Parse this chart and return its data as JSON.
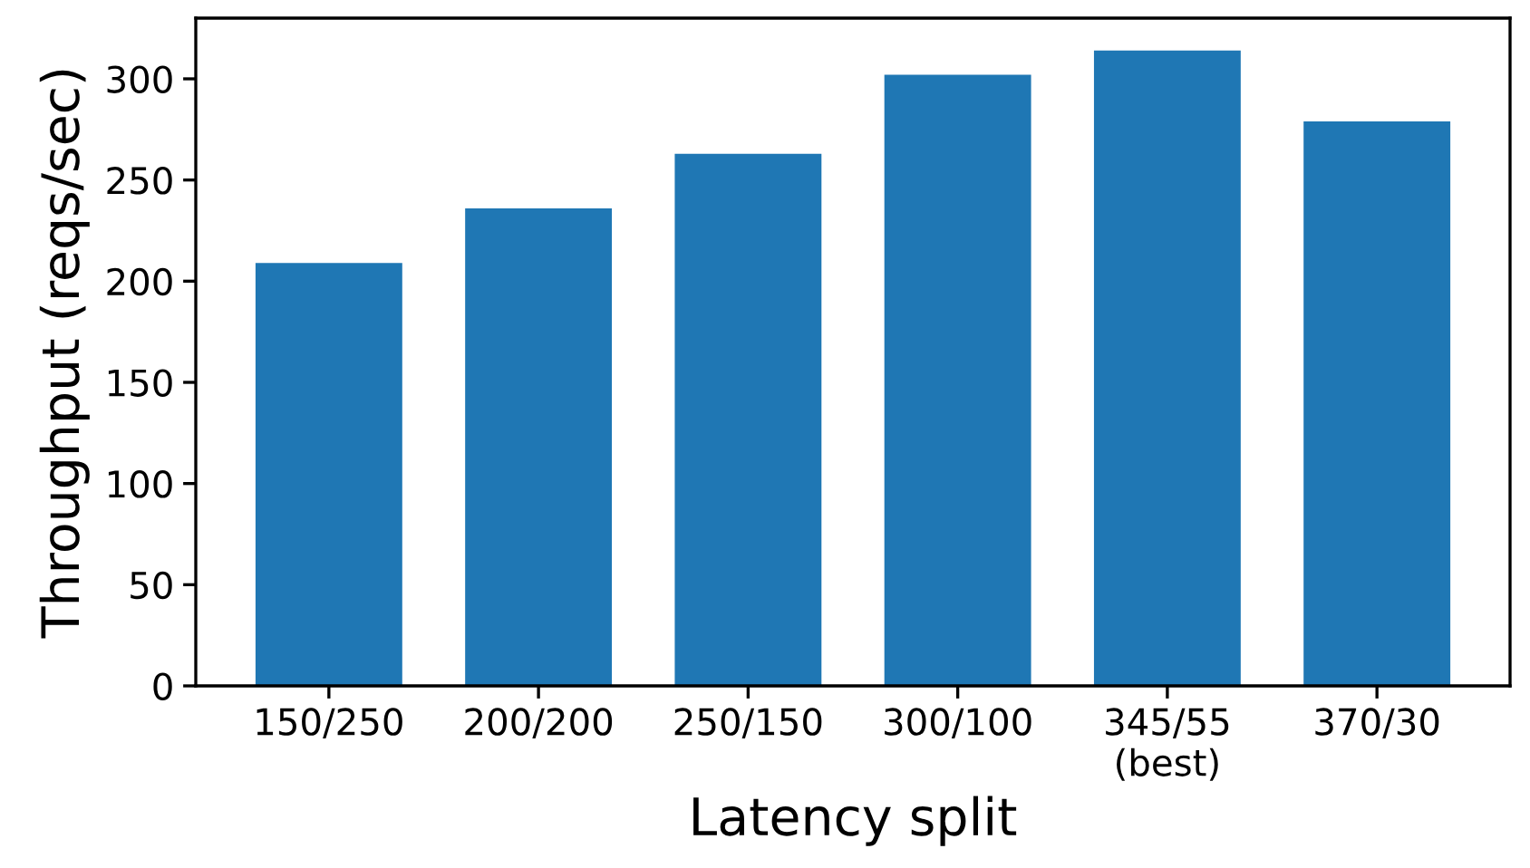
{
  "chart_data": {
    "type": "bar",
    "xlabel": "Latency split",
    "ylabel": "Throughput (reqs/sec)",
    "categories": [
      "150/250",
      "200/200",
      "250/150",
      "300/100",
      "345/55\n(best)",
      "370/30"
    ],
    "values": [
      209,
      236,
      263,
      302,
      314,
      279
    ],
    "color": "#1f77b4",
    "ylim": [
      0,
      330
    ],
    "yticks": [
      0,
      50,
      100,
      150,
      200,
      250,
      300
    ],
    "grid": false,
    "legend": false
  }
}
